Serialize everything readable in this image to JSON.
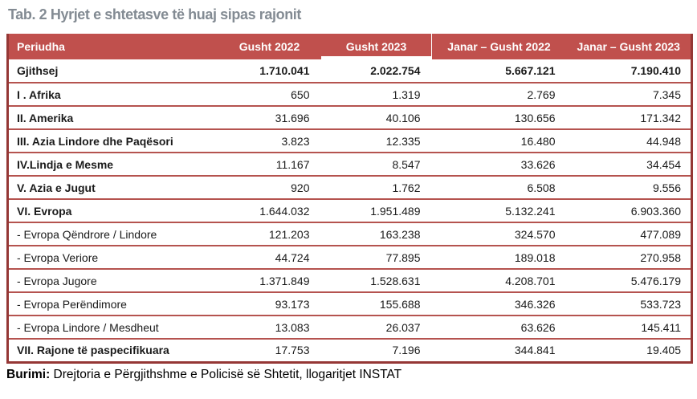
{
  "title": "Tab. 2 Hyrjet e shtetasve të huaj  sipas rajonit",
  "table": {
    "columns": [
      "Periudha",
      "Gusht 2022",
      "Gusht 2023",
      "Janar – Gusht  2022",
      "Janar – Gusht 2023"
    ],
    "rows": [
      {
        "label": "Gjithsej",
        "style": "total",
        "values": [
          "1.710.041",
          "2.022.754",
          "5.667.121",
          "7.190.410"
        ]
      },
      {
        "label": "I . Afrika",
        "style": "region",
        "values": [
          "650",
          "1.319",
          "2.769",
          "7.345"
        ]
      },
      {
        "label": "II. Amerika",
        "style": "region",
        "values": [
          "31.696",
          "40.106",
          "130.656",
          "171.342"
        ]
      },
      {
        "label": "III. Azia Lindore dhe Paqësori",
        "style": "region",
        "values": [
          "3.823",
          "12.335",
          "16.480",
          "44.948"
        ]
      },
      {
        "label": "IV.Lindja e Mesme",
        "style": "region",
        "values": [
          "11.167",
          "8.547",
          "33.626",
          "34.454"
        ]
      },
      {
        "label": "V. Azia e Jugut",
        "style": "region",
        "values": [
          "920",
          "1.762",
          "6.508",
          "9.556"
        ]
      },
      {
        "label": "VI. Evropa",
        "style": "region",
        "values": [
          "1.644.032",
          "1.951.489",
          "5.132.241",
          "6.903.360"
        ]
      },
      {
        "label": "- Evropa Qëndrore / Lindore",
        "style": "sub",
        "values": [
          "121.203",
          "163.238",
          "324.570",
          "477.089"
        ]
      },
      {
        "label": "- Evropa Veriore",
        "style": "sub",
        "values": [
          "44.724",
          "77.895",
          "189.018",
          "270.958"
        ]
      },
      {
        "label": "- Evropa Jugore",
        "style": "sub",
        "values": [
          "1.371.849",
          "1.528.631",
          "4.208.701",
          "5.476.179"
        ]
      },
      {
        "label": "- Evropa Perëndimore",
        "style": "sub",
        "values": [
          "93.173",
          "155.688",
          "346.326",
          "533.723"
        ]
      },
      {
        "label": "- Evropa Lindore / Mesdheut",
        "style": "sub",
        "values": [
          "13.083",
          "26.037",
          "63.626",
          "145.411"
        ]
      },
      {
        "label": "VII. Rajone të paspecifikuara",
        "style": "region",
        "values": [
          "17.753",
          "7.196",
          "344.841",
          "19.405"
        ]
      }
    ]
  },
  "footer": {
    "label": "Burimi:",
    "text": " Drejtoria e Përgjithshme e Policisë së Shtetit, llogaritjet INSTAT"
  },
  "colors": {
    "header_bg": "#C0504D",
    "outer_border": "#953735",
    "row_divider": "#B5534F",
    "title_gray": "#838B93"
  }
}
